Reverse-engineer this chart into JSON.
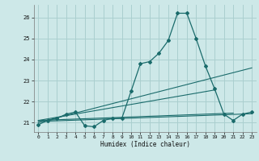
{
  "xlabel": "Humidex (Indice chaleur)",
  "bg_color": "#cde8e8",
  "grid_color": "#aacfcf",
  "line_color": "#1a6b6b",
  "xlim": [
    -0.5,
    23.5
  ],
  "ylim": [
    20.55,
    26.6
  ],
  "yticks": [
    21,
    22,
    23,
    24,
    25,
    26
  ],
  "xticks": [
    0,
    1,
    2,
    3,
    4,
    5,
    6,
    7,
    8,
    9,
    10,
    11,
    12,
    13,
    14,
    15,
    16,
    17,
    18,
    19,
    20,
    21,
    22,
    23
  ],
  "main_series_x": [
    0,
    1,
    2,
    3,
    4,
    5,
    6,
    7,
    8,
    9,
    10,
    11,
    12,
    13,
    14,
    15,
    16,
    17,
    18,
    19,
    20,
    21,
    22,
    23
  ],
  "main_series_y": [
    20.9,
    21.1,
    21.2,
    21.4,
    21.5,
    20.85,
    20.8,
    21.1,
    21.2,
    21.2,
    22.5,
    23.8,
    23.9,
    24.3,
    24.9,
    26.2,
    26.2,
    25.0,
    23.7,
    22.6,
    21.4,
    21.1,
    21.4,
    21.5
  ],
  "line2_x": [
    0,
    23
  ],
  "line2_y": [
    21.0,
    23.6
  ],
  "line3_x": [
    0,
    19
  ],
  "line3_y": [
    21.1,
    22.55
  ],
  "line4_x": [
    0,
    21
  ],
  "line4_y": [
    21.1,
    21.45
  ],
  "line5_x": [
    0,
    23
  ],
  "line5_y": [
    21.05,
    21.42
  ]
}
